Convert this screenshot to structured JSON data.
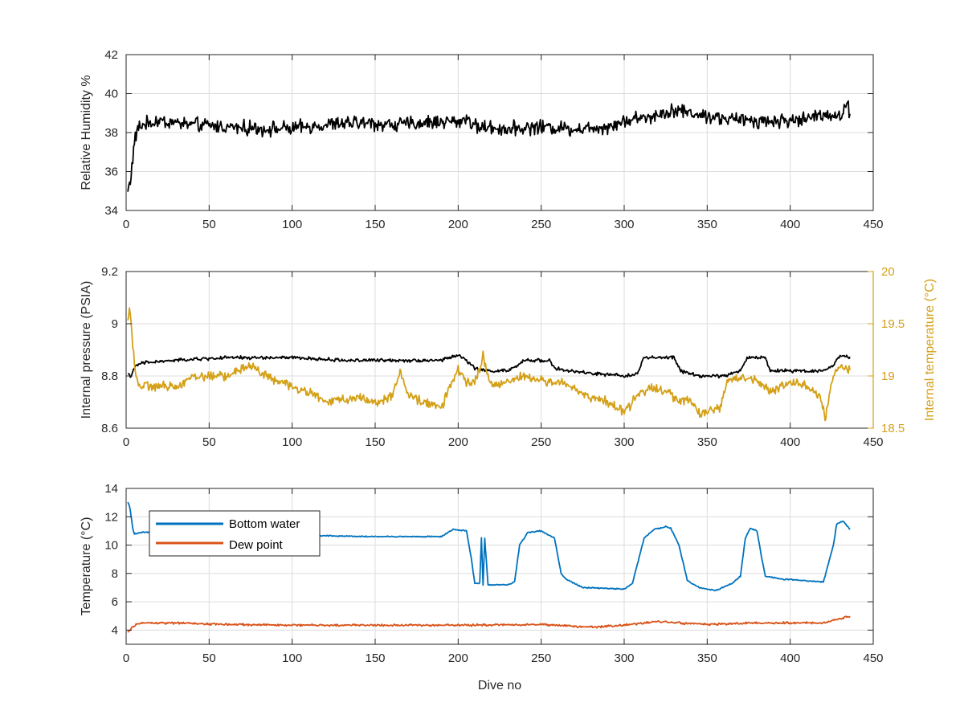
{
  "chart_data": [
    {
      "type": "line",
      "xlabel": "",
      "ylabel": "Relative Humidity %",
      "xlim": [
        0,
        450
      ],
      "ylim": [
        34,
        42
      ],
      "xticks": [
        0,
        50,
        100,
        150,
        200,
        250,
        300,
        350,
        400,
        450
      ],
      "yticks": [
        34,
        36,
        38,
        40,
        42
      ],
      "grid": true,
      "series": [
        {
          "color": "#000000",
          "noise": 0.45,
          "x": [
            1,
            3,
            5,
            7,
            10,
            20,
            40,
            60,
            80,
            100,
            120,
            140,
            160,
            180,
            195,
            200,
            205,
            210,
            230,
            250,
            270,
            290,
            300,
            320,
            330,
            340,
            360,
            380,
            400,
            410,
            420,
            430,
            434,
            436
          ],
          "y": [
            35.0,
            35.8,
            37.5,
            38.2,
            38.4,
            38.6,
            38.4,
            38.3,
            38.2,
            38.2,
            38.4,
            38.5,
            38.4,
            38.5,
            38.6,
            38.5,
            38.8,
            38.3,
            38.2,
            38.3,
            38.2,
            38.3,
            38.6,
            38.9,
            39.2,
            39.0,
            38.7,
            38.6,
            38.6,
            38.7,
            39.0,
            38.8,
            39.4,
            39.1
          ]
        }
      ]
    },
    {
      "type": "line",
      "xlabel": "",
      "ylabel": "Internal pressure (PSIA)",
      "y2label": "Internal temperature (°C)",
      "xlim": [
        0,
        450
      ],
      "ylim": [
        8.6,
        9.2
      ],
      "y2lim": [
        18.5,
        20
      ],
      "xticks": [
        0,
        50,
        100,
        150,
        200,
        250,
        300,
        350,
        400,
        450
      ],
      "yticks": [
        8.6,
        8.8,
        9.0,
        9.2
      ],
      "ytick_labels": [
        "8.6",
        "8.8",
        "9",
        "9.2"
      ],
      "y2ticks": [
        18.5,
        19.0,
        19.5,
        20.0
      ],
      "y2tick_labels": [
        "18.5",
        "19",
        "19.5",
        "20"
      ],
      "y2color": "#d4a017",
      "grid": true,
      "series": [
        {
          "axis": "left",
          "color": "#000000",
          "noise": 0.008,
          "x": [
            1,
            3,
            6,
            10,
            30,
            60,
            80,
            100,
            130,
            160,
            190,
            200,
            205,
            210,
            215,
            230,
            236,
            240,
            255,
            258,
            265,
            280,
            300,
            308,
            312,
            330,
            334,
            345,
            360,
            370,
            374,
            385,
            388,
            400,
            420,
            426,
            430,
            436
          ],
          "y": [
            8.81,
            8.8,
            8.84,
            8.85,
            8.86,
            8.87,
            8.87,
            8.87,
            8.86,
            8.86,
            8.86,
            8.88,
            8.86,
            8.83,
            8.82,
            8.82,
            8.84,
            8.86,
            8.86,
            8.83,
            8.82,
            8.81,
            8.8,
            8.81,
            8.87,
            8.87,
            8.82,
            8.8,
            8.8,
            8.82,
            8.87,
            8.87,
            8.82,
            8.82,
            8.82,
            8.84,
            8.88,
            8.87
          ]
        },
        {
          "axis": "right",
          "color": "#d4a017",
          "noise": 0.055,
          "x": [
            1,
            2,
            4,
            6,
            8,
            30,
            40,
            60,
            75,
            90,
            100,
            110,
            120,
            140,
            150,
            160,
            165,
            170,
            190,
            195,
            200,
            205,
            210,
            214,
            215,
            216,
            220,
            240,
            250,
            260,
            280,
            290,
            295,
            300,
            310,
            320,
            330,
            340,
            345,
            350,
            358,
            362,
            370,
            380,
            390,
            400,
            410,
            418,
            420,
            421,
            425,
            430,
            436
          ],
          "y": [
            19.5,
            19.7,
            19.3,
            19.0,
            18.9,
            18.9,
            19.0,
            19.0,
            19.1,
            18.95,
            18.9,
            18.85,
            18.75,
            18.8,
            18.75,
            18.8,
            19.05,
            18.8,
            18.7,
            18.9,
            19.05,
            18.95,
            18.95,
            19.1,
            19.25,
            19.1,
            18.9,
            19.0,
            18.95,
            18.95,
            18.8,
            18.75,
            18.7,
            18.65,
            18.85,
            18.9,
            18.8,
            18.75,
            18.65,
            18.65,
            18.7,
            18.95,
            19.0,
            18.95,
            18.85,
            18.95,
            18.9,
            18.8,
            18.7,
            18.55,
            18.95,
            19.1,
            19.05
          ]
        }
      ]
    },
    {
      "type": "line",
      "xlabel": "Dive no",
      "ylabel": "Temperature (°C)",
      "xlim": [
        0,
        450
      ],
      "ylim": [
        3,
        14
      ],
      "xticks": [
        0,
        50,
        100,
        150,
        200,
        250,
        300,
        350,
        400,
        450
      ],
      "yticks": [
        4,
        6,
        8,
        10,
        12,
        14
      ],
      "grid": true,
      "legend_position": "top-left",
      "series": [
        {
          "name": "Bottom water",
          "color": "#0072bd",
          "noise": 0.05,
          "x": [
            1,
            2,
            3,
            4,
            5,
            6,
            10,
            30,
            60,
            100,
            150,
            190,
            197,
            205,
            208,
            210,
            213,
            214,
            215,
            216,
            218,
            220,
            230,
            234,
            237,
            242,
            250,
            258,
            262,
            265,
            275,
            300,
            305,
            312,
            318,
            325,
            328,
            333,
            338,
            345,
            355,
            365,
            370,
            373,
            376,
            380,
            383,
            385,
            395,
            420,
            426,
            428,
            432,
            436
          ],
          "y": [
            13.0,
            12.8,
            12.0,
            11.2,
            10.8,
            10.8,
            10.9,
            10.8,
            10.7,
            10.7,
            10.6,
            10.6,
            11.1,
            11.0,
            9.0,
            7.3,
            7.3,
            10.5,
            7.2,
            10.5,
            7.2,
            7.2,
            7.2,
            7.4,
            10.0,
            10.9,
            11.0,
            10.5,
            8.0,
            7.6,
            7.0,
            6.9,
            7.3,
            10.5,
            11.1,
            11.3,
            11.2,
            10.0,
            7.5,
            7.0,
            6.8,
            7.3,
            7.8,
            10.5,
            11.2,
            11.0,
            9.0,
            7.8,
            7.6,
            7.4,
            10.0,
            11.5,
            11.7,
            11.1
          ]
        },
        {
          "name": "Dew point",
          "color": "#d95319",
          "noise": 0.09,
          "x": [
            1,
            3,
            6,
            10,
            30,
            60,
            100,
            150,
            200,
            250,
            280,
            300,
            320,
            350,
            380,
            400,
            420,
            430,
            436
          ],
          "y": [
            3.8,
            4.1,
            4.4,
            4.5,
            4.5,
            4.4,
            4.35,
            4.35,
            4.35,
            4.4,
            4.2,
            4.35,
            4.6,
            4.4,
            4.5,
            4.5,
            4.5,
            4.8,
            5.0
          ]
        }
      ]
    }
  ]
}
